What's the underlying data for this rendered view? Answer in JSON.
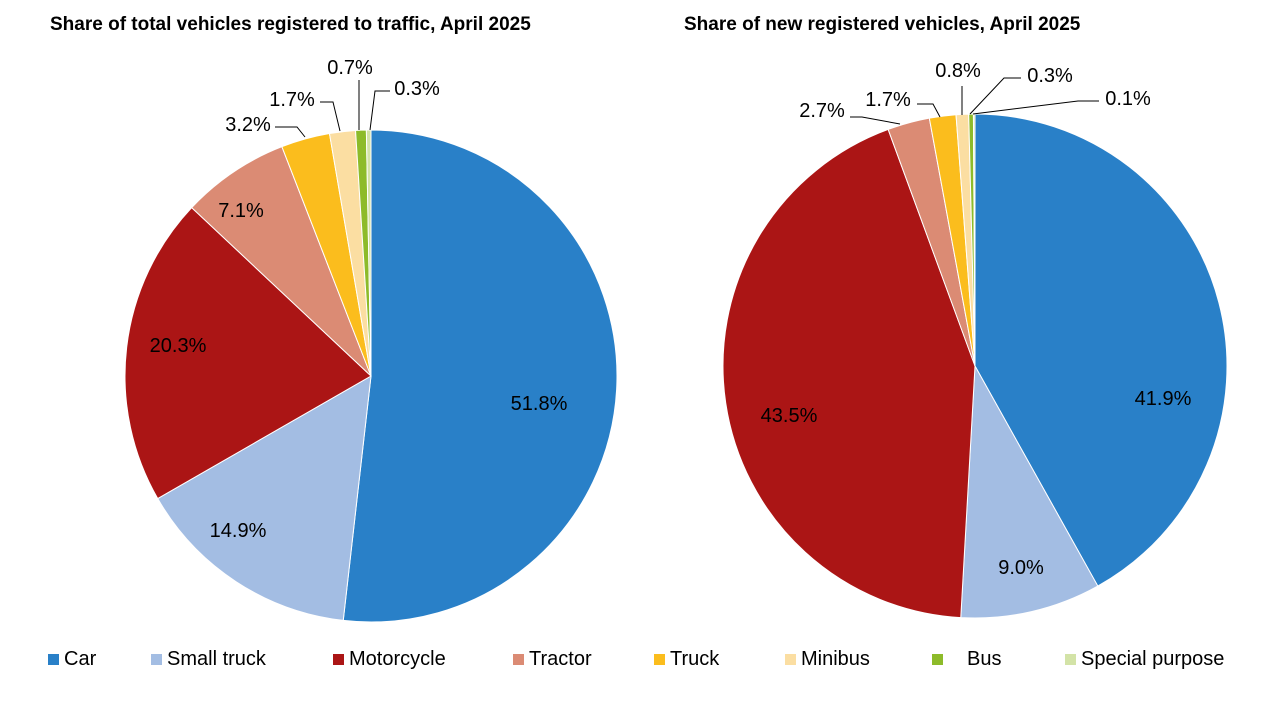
{
  "chart_data": [
    {
      "type": "pie",
      "title": "Share of total vehicles registered to traffic, April 2025",
      "labels": [
        "Car",
        "Small truck",
        "Motorcycle",
        "Tractor",
        "Truck",
        "Minibus",
        "Bus",
        "Special purpose"
      ],
      "values": [
        51.8,
        14.9,
        20.3,
        7.1,
        3.2,
        1.7,
        0.7,
        0.3
      ],
      "value_labels": [
        "51.8%",
        "14.9%",
        "20.3%",
        "7.1%",
        "3.2%",
        "1.7%",
        "0.7%",
        "0.3%"
      ],
      "start_angle": "12 o'clock",
      "direction": "clockwise"
    },
    {
      "type": "pie",
      "title": "Share of new registered vehicles, April 2025",
      "labels": [
        "Car",
        "Small truck",
        "Motorcycle",
        "Tractor",
        "Truck",
        "Minibus",
        "Bus",
        "Special purpose"
      ],
      "values": [
        41.9,
        9.0,
        43.5,
        2.7,
        1.7,
        0.8,
        0.3,
        0.1
      ],
      "value_labels": [
        "41.9%",
        "9.0%",
        "43.5%",
        "2.7%",
        "1.7%",
        "0.8%",
        "0.3%",
        "0.1%"
      ],
      "start_angle": "12 o'clock",
      "direction": "clockwise"
    }
  ],
  "legend": {
    "placement": "bottom",
    "items": [
      {
        "label": "Car",
        "color": "#2980c8"
      },
      {
        "label": "Small truck",
        "color": "#a3bde3"
      },
      {
        "label": "Motorcycle",
        "color": "#ab1515"
      },
      {
        "label": "Tractor",
        "color": "#db8b74"
      },
      {
        "label": "Truck",
        "color": "#fbbd1d"
      },
      {
        "label": "Minibus",
        "color": "#fbdea2"
      },
      {
        "label": "Bus",
        "color": "#8dbb2a"
      },
      {
        "label": "Special purpose",
        "color": "#d3e3a7"
      }
    ]
  }
}
